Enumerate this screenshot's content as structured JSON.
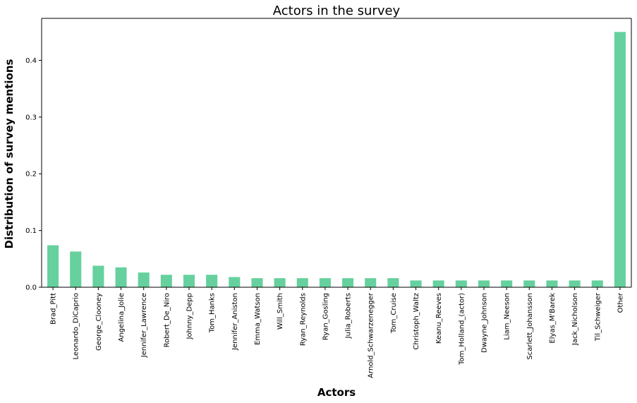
{
  "chart_data": {
    "type": "bar",
    "title": "Actors in the survey",
    "xlabel": "Actors",
    "ylabel": "Distribution of survey mentions",
    "categories": [
      "Brad_Pitt",
      "Leonardo_DiCaprio",
      "George_Clooney",
      "Angelina_Jolie",
      "Jennifer_Lawrence",
      "Robert_De_Niro",
      "Johnny_Depp",
      "Tom_Hanks",
      "Jennifer_Aniston",
      "Emma_Watson",
      "Will_Smith",
      "Ryan_Reynolds",
      "Ryan_Gosling",
      "Julia_Roberts",
      "Arnold_Schwarzenegger",
      "Tom_Cruise",
      "Christoph_Waltz",
      "Keanu_Reeves",
      "Tom_Holland_(actor)",
      "Dwayne_Johnson",
      "Liam_Neeson",
      "Scarlett_Johansson",
      "Elyas_M'Barek",
      "Jack_Nicholson",
      "Til_Schweiger",
      "Other"
    ],
    "values": [
      0.074,
      0.063,
      0.038,
      0.035,
      0.026,
      0.022,
      0.022,
      0.022,
      0.018,
      0.016,
      0.016,
      0.016,
      0.016,
      0.016,
      0.016,
      0.016,
      0.012,
      0.012,
      0.012,
      0.012,
      0.012,
      0.012,
      0.012,
      0.012,
      0.012,
      0.45
    ],
    "ylim": [
      0,
      0.474
    ],
    "yticks": [
      "0.0",
      "0.1",
      "0.2",
      "0.3",
      "0.4"
    ],
    "bar_color": "#66d19e",
    "grid": false
  }
}
